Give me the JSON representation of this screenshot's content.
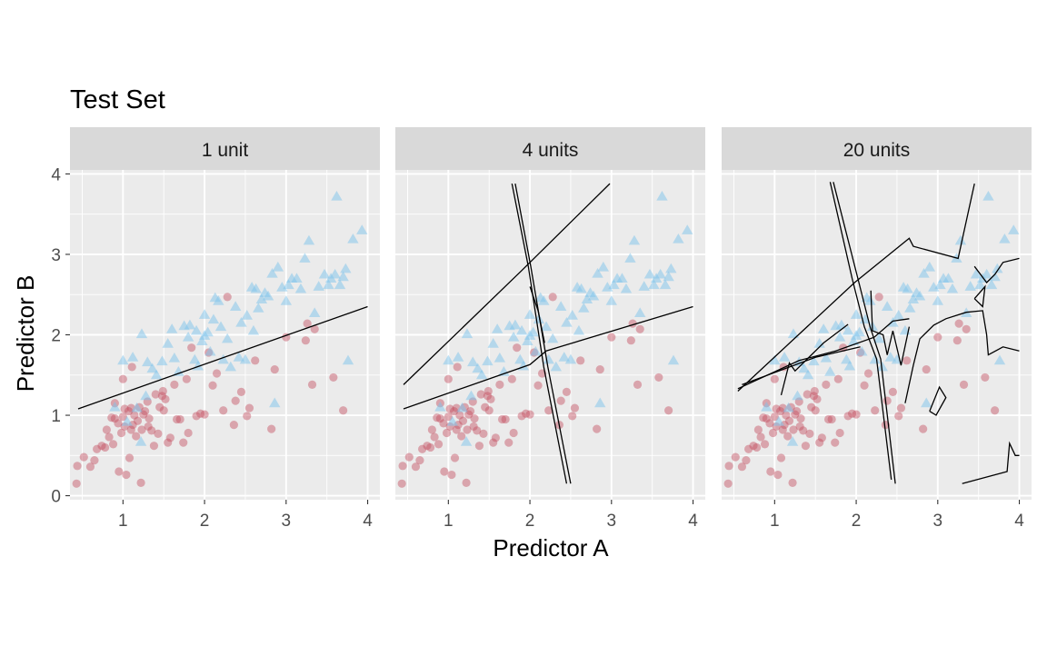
{
  "chart_data": {
    "type": "scatter",
    "title": "Test Set",
    "xlabel": "Predictor A",
    "ylabel": "Predictor B",
    "xlim": [
      0.35,
      4.15
    ],
    "ylim": [
      -0.05,
      4.05
    ],
    "x_ticks": [
      1,
      2,
      3,
      4
    ],
    "y_ticks": [
      0,
      1,
      2,
      3,
      4
    ],
    "grid": true,
    "colors": {
      "class1": "#C44E60",
      "class2": "#7EC4EC",
      "panel_bg": "#EBEBEB",
      "strip_bg": "#D9D9D9",
      "boundary": "#000000"
    },
    "marker_shapes": {
      "class1": "circle",
      "class2": "triangle"
    },
    "points_class1": [
      [
        0.43,
        0.15
      ],
      [
        0.44,
        0.37
      ],
      [
        0.52,
        0.48
      ],
      [
        0.6,
        0.36
      ],
      [
        0.65,
        0.44
      ],
      [
        0.68,
        0.58
      ],
      [
        0.74,
        0.62
      ],
      [
        0.78,
        0.6
      ],
      [
        0.8,
        0.82
      ],
      [
        0.83,
        0.73
      ],
      [
        0.86,
        0.97
      ],
      [
        0.88,
        0.64
      ],
      [
        0.9,
        0.96
      ],
      [
        0.9,
        1.15
      ],
      [
        0.94,
        0.9
      ],
      [
        0.95,
        0.3
      ],
      [
        0.98,
        0.78
      ],
      [
        1.0,
        0.98
      ],
      [
        1.02,
        0.86
      ],
      [
        1.02,
        1.08
      ],
      [
        1.04,
        0.26
      ],
      [
        1.07,
        1.05
      ],
      [
        1.08,
        0.47
      ],
      [
        1.1,
        0.82
      ],
      [
        1.1,
        1.09
      ],
      [
        1.12,
        0.88
      ],
      [
        1.14,
        1.0
      ],
      [
        1.16,
        0.74
      ],
      [
        1.18,
        0.93
      ],
      [
        1.2,
        1.1
      ],
      [
        1.22,
        0.16
      ],
      [
        1.23,
        0.82
      ],
      [
        1.25,
        1.01
      ],
      [
        1.27,
        1.05
      ],
      [
        1.3,
        1.17
      ],
      [
        1.31,
        0.86
      ],
      [
        1.32,
        0.96
      ],
      [
        1.35,
        0.81
      ],
      [
        1.38,
        0.62
      ],
      [
        1.4,
        1.26
      ],
      [
        1.43,
        0.77
      ],
      [
        1.45,
        1.1
      ],
      [
        1.48,
        1.24
      ],
      [
        1.5,
        1.06
      ],
      [
        1.52,
        1.2
      ],
      [
        1.55,
        0.66
      ],
      [
        1.58,
        0.72
      ],
      [
        1.63,
        1.38
      ],
      [
        1.66,
        0.95
      ],
      [
        1.7,
        0.95
      ],
      [
        1.74,
        0.66
      ],
      [
        1.8,
        0.78
      ],
      [
        1.84,
        1.84
      ],
      [
        1.9,
        0.99
      ],
      [
        1.95,
        1.02
      ],
      [
        2.0,
        1.01
      ],
      [
        2.05,
        1.78
      ],
      [
        2.1,
        1.37
      ],
      [
        2.15,
        1.52
      ],
      [
        2.23,
        1.06
      ],
      [
        2.28,
        2.47
      ],
      [
        2.36,
        0.88
      ],
      [
        2.38,
        1.18
      ],
      [
        2.45,
        1.29
      ],
      [
        2.52,
        0.99
      ],
      [
        2.55,
        1.09
      ],
      [
        2.62,
        1.68
      ],
      [
        2.82,
        0.83
      ],
      [
        2.86,
        1.57
      ],
      [
        3.0,
        1.97
      ],
      [
        3.26,
        2.14
      ],
      [
        3.32,
        1.38
      ],
      [
        3.35,
        2.07
      ],
      [
        3.58,
        1.47
      ],
      [
        3.7,
        1.06
      ],
      [
        3.24,
        1.93
      ],
      [
        1.0,
        1.45
      ],
      [
        1.11,
        1.6
      ],
      [
        1.49,
        1.3
      ],
      [
        1.78,
        1.45
      ]
    ],
    "points_class2": [
      [
        0.9,
        1.1
      ],
      [
        1.0,
        1.68
      ],
      [
        1.05,
        0.92
      ],
      [
        1.12,
        1.72
      ],
      [
        1.17,
        1.09
      ],
      [
        1.22,
        0.67
      ],
      [
        1.23,
        2.01
      ],
      [
        1.28,
        1.24
      ],
      [
        1.3,
        1.66
      ],
      [
        1.36,
        1.58
      ],
      [
        1.41,
        1.5
      ],
      [
        1.48,
        1.67
      ],
      [
        1.55,
        1.89
      ],
      [
        1.6,
        2.07
      ],
      [
        1.63,
        1.71
      ],
      [
        1.68,
        1.54
      ],
      [
        1.75,
        2.11
      ],
      [
        1.8,
        1.97
      ],
      [
        1.82,
        2.12
      ],
      [
        1.88,
        1.69
      ],
      [
        1.92,
        1.61
      ],
      [
        1.97,
        1.92
      ],
      [
        2.0,
        1.99
      ],
      [
        2.04,
        2.03
      ],
      [
        2.07,
        1.79
      ],
      [
        2.11,
        2.19
      ],
      [
        2.13,
        2.46
      ],
      [
        2.17,
        2.42
      ],
      [
        2.23,
        1.69
      ],
      [
        2.28,
        1.95
      ],
      [
        2.32,
        1.6
      ],
      [
        2.38,
        2.35
      ],
      [
        2.42,
        1.72
      ],
      [
        2.5,
        1.69
      ],
      [
        2.52,
        2.24
      ],
      [
        2.58,
        2.59
      ],
      [
        2.63,
        2.57
      ],
      [
        2.66,
        2.33
      ],
      [
        2.7,
        2.44
      ],
      [
        2.74,
        2.52
      ],
      [
        2.78,
        2.48
      ],
      [
        2.83,
        2.76
      ],
      [
        2.86,
        1.15
      ],
      [
        2.9,
        2.84
      ],
      [
        2.95,
        2.59
      ],
      [
        3.0,
        2.42
      ],
      [
        3.03,
        2.62
      ],
      [
        3.07,
        2.7
      ],
      [
        3.13,
        2.7
      ],
      [
        3.18,
        2.57
      ],
      [
        3.23,
        2.95
      ],
      [
        3.28,
        3.17
      ],
      [
        3.35,
        2.27
      ],
      [
        3.4,
        2.6
      ],
      [
        3.47,
        2.75
      ],
      [
        3.52,
        2.62
      ],
      [
        3.55,
        2.7
      ],
      [
        3.6,
        2.75
      ],
      [
        3.62,
        3.72
      ],
      [
        3.66,
        2.62
      ],
      [
        3.7,
        2.72
      ],
      [
        3.73,
        2.82
      ],
      [
        3.76,
        1.68
      ],
      [
        3.82,
        3.19
      ],
      [
        3.93,
        3.3
      ],
      [
        2.2,
        2.1
      ],
      [
        2.45,
        2.15
      ],
      [
        2.0,
        2.25
      ],
      [
        1.9,
        2.05
      ],
      [
        2.6,
        2.05
      ]
    ],
    "panels": [
      {
        "label": "1 unit",
        "boundaries": [
          [
            [
              0.45,
              1.08
            ],
            [
              4.0,
              2.35
            ]
          ]
        ]
      },
      {
        "label": "4 units",
        "boundaries": [
          [
            [
              0.45,
              1.08
            ],
            [
              2.0,
              1.63
            ],
            [
              2.2,
              1.8
            ],
            [
              4.0,
              2.35
            ]
          ],
          [
            [
              0.45,
              1.38
            ],
            [
              1.9,
              2.8
            ],
            [
              2.98,
              3.88
            ]
          ],
          [
            [
              1.78,
              3.88
            ],
            [
              1.98,
              2.85
            ],
            [
              2.17,
              1.6
            ],
            [
              2.45,
              0.15
            ]
          ],
          [
            [
              1.82,
              3.88
            ],
            [
              2.01,
              2.85
            ],
            [
              2.22,
              1.6
            ],
            [
              2.5,
              0.15
            ]
          ],
          [
            [
              2.0,
              2.6
            ],
            [
              2.1,
              2.3
            ],
            [
              2.18,
              1.9
            ]
          ]
        ]
      },
      {
        "label": "20 units",
        "boundaries": [
          [
            [
              0.55,
              1.3
            ],
            [
              1.98,
              2.65
            ],
            [
              2.65,
              3.2
            ],
            [
              2.7,
              3.1
            ],
            [
              3.25,
              2.95
            ],
            [
              3.45,
              3.88
            ]
          ],
          [
            [
              0.55,
              1.33
            ],
            [
              1.3,
              1.68
            ],
            [
              1.75,
              1.8
            ],
            [
              2.22,
              1.97
            ],
            [
              2.45,
              2.17
            ],
            [
              2.65,
              2.2
            ]
          ],
          [
            [
              0.6,
              1.38
            ],
            [
              1.5,
              1.72
            ],
            [
              2.05,
              1.85
            ]
          ],
          [
            [
              1.08,
              1.25
            ],
            [
              1.18,
              1.65
            ],
            [
              1.25,
              1.55
            ],
            [
              1.6,
              1.9
            ],
            [
              1.9,
              2.13
            ]
          ],
          [
            [
              1.68,
              3.9
            ],
            [
              1.95,
              2.7
            ],
            [
              2.1,
              2.1
            ],
            [
              2.25,
              1.7
            ],
            [
              2.43,
              0.2
            ]
          ],
          [
            [
              1.72,
              3.9
            ],
            [
              2.02,
              2.7
            ],
            [
              2.17,
              2.1
            ],
            [
              2.3,
              1.7
            ],
            [
              2.48,
              0.15
            ]
          ],
          [
            [
              2.18,
              2.55
            ],
            [
              2.2,
              2.05
            ],
            [
              2.33,
              2.0
            ],
            [
              2.38,
              1.75
            ],
            [
              2.45,
              2.05
            ],
            [
              2.55,
              1.62
            ],
            [
              2.65,
              2.1
            ]
          ],
          [
            [
              2.6,
              1.15
            ],
            [
              2.7,
              1.62
            ],
            [
              2.78,
              1.95
            ],
            [
              2.95,
              2.12
            ],
            [
              3.1,
              2.2
            ],
            [
              3.35,
              2.28
            ],
            [
              3.55,
              2.3
            ],
            [
              3.6,
              2.0
            ],
            [
              3.62,
              1.75
            ],
            [
              3.8,
              1.85
            ],
            [
              4.0,
              1.8
            ]
          ],
          [
            [
              3.45,
              2.85
            ],
            [
              3.6,
              2.65
            ],
            [
              3.7,
              2.75
            ],
            [
              3.8,
              2.9
            ],
            [
              4.0,
              2.95
            ]
          ],
          [
            [
              3.45,
              2.45
            ],
            [
              3.58,
              2.6
            ],
            [
              3.55,
              2.35
            ],
            [
              3.45,
              2.45
            ]
          ],
          [
            [
              2.9,
              1.05
            ],
            [
              3.02,
              1.35
            ],
            [
              3.1,
              1.22
            ],
            [
              2.98,
              1.0
            ],
            [
              2.9,
              1.05
            ]
          ],
          [
            [
              3.3,
              0.15
            ],
            [
              3.85,
              0.3
            ],
            [
              3.88,
              0.65
            ],
            [
              3.95,
              0.5
            ],
            [
              4.0,
              0.5
            ]
          ]
        ]
      }
    ]
  }
}
